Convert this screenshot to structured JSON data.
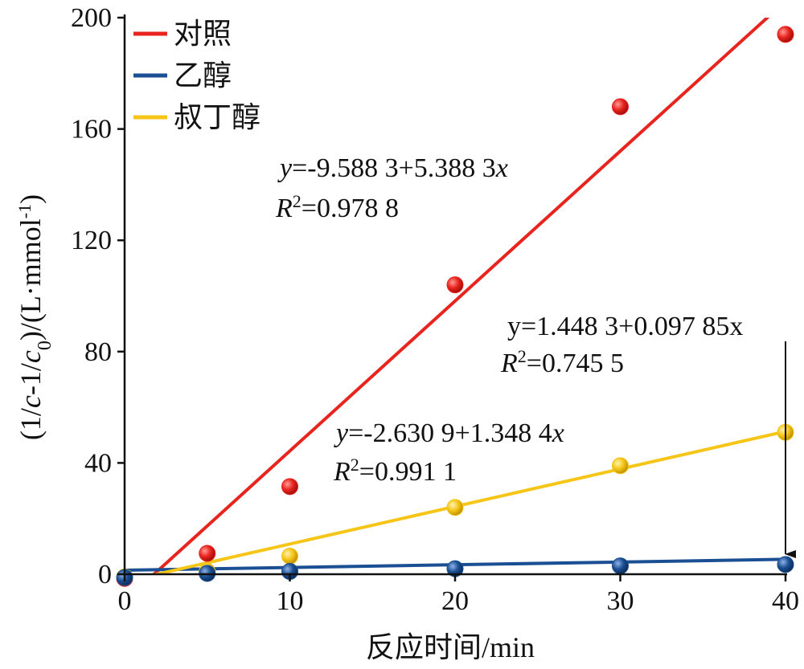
{
  "chart_data": {
    "type": "scatter",
    "xlabel": "反应时间/min",
    "ylabel": "(1/c-1/c0)/(L·mmol-1)",
    "xlim": [
      0,
      40
    ],
    "ylim": [
      0,
      200
    ],
    "xticks": [
      0,
      10,
      20,
      30,
      40
    ],
    "yticks": [
      0,
      40,
      80,
      120,
      160,
      200
    ],
    "legend": "top-left",
    "grid": false,
    "series": [
      {
        "name": "对照",
        "color": "#e8241f",
        "x": [
          0,
          5,
          10,
          20,
          30,
          40
        ],
        "y": [
          -1.5,
          7.5,
          31.5,
          104,
          168,
          194
        ],
        "fit": {
          "intercept": -9.5883,
          "slope": 5.3883
        },
        "equation": "y=-9.588 3+5.388 3x",
        "r2": "R2=0.978 8"
      },
      {
        "name": "乙醇",
        "color": "#1b4f93",
        "x": [
          0,
          5,
          10,
          20,
          30,
          40
        ],
        "y": [
          -1.2,
          0.3,
          1.0,
          2.0,
          3.0,
          3.5
        ],
        "fit": {
          "intercept": 1.4483,
          "slope": 0.09785
        },
        "equation": "y=1.448 3+0.097 85x",
        "r2": "R2=0.745 5"
      },
      {
        "name": "叔丁醇",
        "color": "#f5c518",
        "x": [
          0,
          5,
          10,
          20,
          30,
          40
        ],
        "y": [
          -1.0,
          1.0,
          6.5,
          24,
          39,
          51
        ],
        "fit": {
          "intercept": -2.6309,
          "slope": 1.3484
        },
        "equation": "y=-2.630 9+1.348 4x",
        "r2": "R2=0.991 1"
      }
    ]
  }
}
